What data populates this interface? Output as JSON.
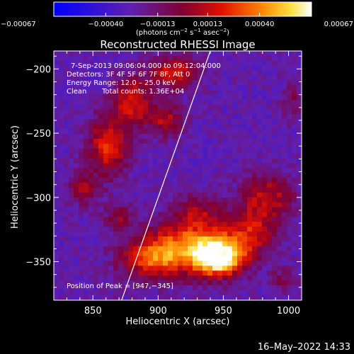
{
  "chart_data": {
    "type": "heatmap",
    "title": "Reconstructed RHESSI Image",
    "xlabel": "Heliocentric X (arcsec)",
    "ylabel": "Heliocentric Y (arcsec)",
    "xlim": [
      820,
      1010
    ],
    "ylim": [
      -380,
      -186
    ],
    "xticks": [
      850,
      900,
      950,
      1000
    ],
    "yticks": [
      -200,
      -250,
      -300,
      -350
    ],
    "ytick_labels": [
      "−200",
      "−250",
      "−300",
      "−350"
    ],
    "colorbar": {
      "ticks": [
        "−0.00067",
        "−0.00040",
        "−0.00013",
        "0.00013",
        "0.00040",
        "0.00067"
      ],
      "range": [
        -0.00067,
        0.00067
      ],
      "label_main": "(photons cm",
      "label_sup1": "−2",
      "label_mid1": " s",
      "label_sup2": "−1",
      "label_mid2": " asec",
      "label_sup3": "−2",
      "label_end": ")"
    },
    "annotations": [
      "7-Sep-2013 09:06:04.000 to 09:12:04.000",
      "Detectors: 3F 4F 5F 6F 7F 8F, Att 0",
      "Energy Range: 12.0 – 25.0 keV",
      "Clean",
      "Total counts: 1.36E+04"
    ],
    "peak_label": "Position of Peak = [947,−345]",
    "peak": [
      947,
      -345
    ],
    "limb": [
      [
        940,
        -186
      ],
      [
        872,
        -380
      ]
    ],
    "sources": [
      {
        "x": 947,
        "y": -347,
        "sx": 13,
        "sy": 10,
        "a": 1.0
      },
      {
        "x": 925,
        "y": -337,
        "sx": 22,
        "sy": 14,
        "a": 0.65
      },
      {
        "x": 895,
        "y": -348,
        "sx": 17,
        "sy": 11,
        "a": 0.55
      },
      {
        "x": 972,
        "y": -325,
        "sx": 14,
        "sy": 14,
        "a": 0.45
      },
      {
        "x": 985,
        "y": -298,
        "sx": 14,
        "sy": 12,
        "a": 0.4
      },
      {
        "x": 930,
        "y": -310,
        "sx": 12,
        "sy": 9,
        "a": 0.3
      },
      {
        "x": 862,
        "y": -260,
        "sx": 11,
        "sy": 16,
        "a": 0.55
      },
      {
        "x": 880,
        "y": -225,
        "sx": 10,
        "sy": 13,
        "a": 0.5
      },
      {
        "x": 905,
        "y": -240,
        "sx": 10,
        "sy": 9,
        "a": 0.4
      },
      {
        "x": 912,
        "y": -203,
        "sx": 13,
        "sy": 9,
        "a": 0.5
      },
      {
        "x": 843,
        "y": -293,
        "sx": 8,
        "sy": 9,
        "a": 0.35
      },
      {
        "x": 870,
        "y": -315,
        "sx": 8,
        "sy": 7,
        "a": 0.3
      },
      {
        "x": 1003,
        "y": -225,
        "sx": 6,
        "sy": 10,
        "a": 0.2
      },
      {
        "x": 996,
        "y": -365,
        "sx": 7,
        "sy": 8,
        "a": 0.2
      }
    ]
  },
  "footer_date": "16–May–2022 14:33"
}
